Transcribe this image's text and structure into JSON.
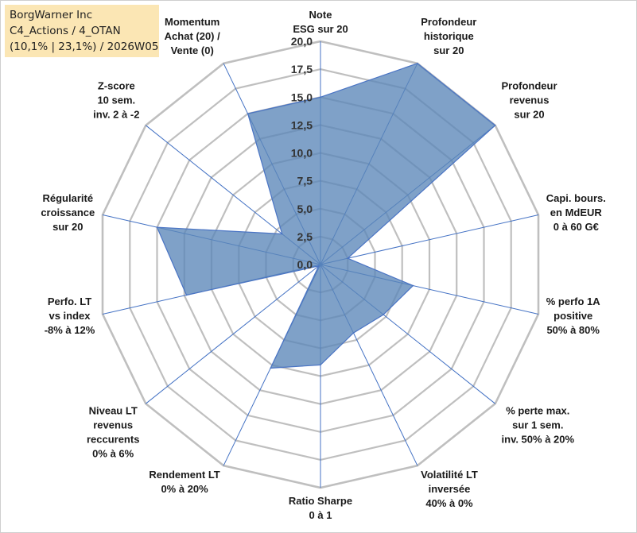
{
  "info": {
    "line1": "BorgWarner Inc",
    "line2": "C4_Actions / 4_OTAN",
    "line3": "(10,1% | 23,1%) / 2026W05"
  },
  "colors": {
    "fill": "#5b86b8",
    "stroke": "#4a74c4",
    "grid": "#bfbfbf",
    "spokes": "#4472c4",
    "info_bg": "#fbe6b4"
  },
  "chart_data": {
    "type": "radar",
    "title": "",
    "rmin": 0,
    "rmax": 20,
    "ticks": [
      "0,0",
      "2,5",
      "5,0",
      "7,5",
      "10,0",
      "12,5",
      "15,0",
      "17,5",
      "20,0"
    ],
    "axes": [
      {
        "lines": [
          "Note",
          "ESG sur 20"
        ],
        "value": 15.0
      },
      {
        "lines": [
          "Profondeur",
          "historique",
          "sur 20"
        ],
        "value": 20.0
      },
      {
        "lines": [
          "Profondeur",
          "revenus",
          "sur 20"
        ],
        "value": 20.0
      },
      {
        "lines": [
          "Capi. bours.",
          "en MdEUR",
          "0 à 60 G€"
        ],
        "value": 2.5
      },
      {
        "lines": [
          "% perfo 1A",
          "positive",
          "50% à 80%"
        ],
        "value": 8.5
      },
      {
        "lines": [
          "% perte max.",
          "sur 1 sem.",
          "inv. 50% à 20%"
        ],
        "value": 7.2
      },
      {
        "lines": [
          "Volatilité LT",
          "inversée",
          "40% à 0%"
        ],
        "value": 6.8
      },
      {
        "lines": [
          "Ratio Sharpe",
          "0 à 1"
        ],
        "value": 9.0
      },
      {
        "lines": [
          "Rendement LT",
          "0% à 20%"
        ],
        "value": 10.3
      },
      {
        "lines": [
          "Niveau LT",
          "revenus",
          "reccurents",
          "0% à 6%"
        ],
        "value": 0.2
      },
      {
        "lines": [
          "Perfo. LT",
          "vs index",
          "-8% à 12%"
        ],
        "value": 12.3
      },
      {
        "lines": [
          "Régularité",
          "croissance",
          "sur 20"
        ],
        "value": 15.0
      },
      {
        "lines": [
          "Z-score",
          "10 sem.",
          "inv. 2 à -2"
        ],
        "value": 4.4
      },
      {
        "lines": [
          "Momentum",
          "Achat (20) /",
          "Vente (0)"
        ],
        "value": 15.0
      }
    ]
  }
}
